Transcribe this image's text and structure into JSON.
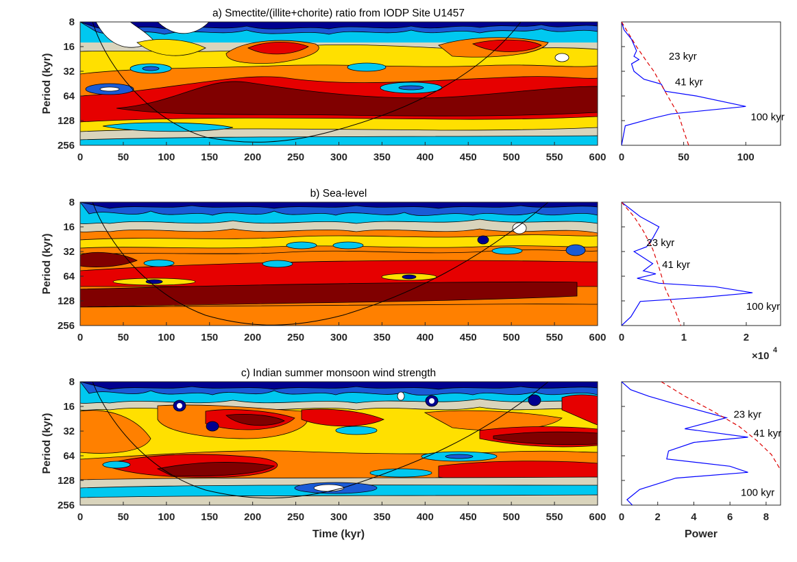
{
  "figure": {
    "xlabel": "Time (kyr)",
    "power_label": "Power",
    "exponent_label": "×10",
    "exponent_power": "4"
  },
  "chart_data": [
    {
      "type": "heatmap",
      "title": "a) Smectite/(illite+chorite) ratio from IODP Site U1457",
      "ylabel": "Period (kyr)",
      "x_ticks": [
        0,
        50,
        100,
        150,
        200,
        250,
        300,
        350,
        400,
        450,
        500,
        550,
        600
      ],
      "y_ticks": [
        8,
        16,
        32,
        64,
        128,
        256
      ],
      "xlim": [
        0,
        600
      ],
      "ylim": [
        8,
        256
      ],
      "y_scale": "log2 (reversed)",
      "colormap": [
        "#00008f",
        "#1a5bd6",
        "#00c8f0",
        "#d9d4bc",
        "#ffe000",
        "#ff8000",
        "#e60000",
        "#800000"
      ],
      "cone_of_influence": true
    },
    {
      "type": "line",
      "title": "",
      "series": [
        {
          "name": "spectrum",
          "color": "#0000ff",
          "style": "solid",
          "points": [
            [
              0,
              8
            ],
            [
              2,
              10
            ],
            [
              8,
              13
            ],
            [
              12,
              18
            ],
            [
              10,
              21
            ],
            [
              14,
              23
            ],
            [
              8,
              26
            ],
            [
              10,
              32
            ],
            [
              18,
              40
            ],
            [
              32,
              46
            ],
            [
              35,
              56
            ],
            [
              60,
              64
            ],
            [
              100,
              86
            ],
            [
              40,
              106
            ],
            [
              25,
              120
            ],
            [
              3,
              148
            ],
            [
              0,
              256
            ]
          ]
        },
        {
          "name": "red-noise",
          "color": "#dd0000",
          "style": "dashed",
          "points": [
            [
              0,
              8
            ],
            [
              12,
              16
            ],
            [
              20,
              24
            ],
            [
              26,
              32
            ],
            [
              36,
              60
            ],
            [
              46,
              110
            ],
            [
              50,
              170
            ],
            [
              54,
              256
            ]
          ]
        }
      ],
      "x_ticks": [
        0,
        50,
        100
      ],
      "xlim": [
        0,
        128
      ],
      "ylim": [
        8,
        256
      ],
      "annotations": [
        {
          "text": "23 kyr",
          "x": 38,
          "y": 21
        },
        {
          "text": "41 kyr",
          "x": 43,
          "y": 43
        },
        {
          "text": "100 kyr",
          "x": 104,
          "y": 115
        }
      ]
    },
    {
      "type": "heatmap",
      "title": "b) Sea-level",
      "ylabel": "Period (kyr)",
      "x_ticks": [
        0,
        50,
        100,
        150,
        200,
        250,
        300,
        350,
        400,
        450,
        500,
        550,
        600
      ],
      "y_ticks": [
        8,
        16,
        32,
        64,
        128,
        256
      ],
      "xlim": [
        0,
        600
      ],
      "ylim": [
        8,
        256
      ],
      "y_scale": "log2 (reversed)",
      "colormap": [
        "#00008f",
        "#1a5bd6",
        "#00c8f0",
        "#d9d4bc",
        "#ffe000",
        "#ff8000",
        "#e60000",
        "#800000"
      ],
      "cone_of_influence": true
    },
    {
      "type": "line",
      "title": "",
      "series": [
        {
          "name": "spectrum",
          "color": "#0000ff",
          "style": "solid",
          "points": [
            [
              0,
              8
            ],
            [
              0.3,
              12
            ],
            [
              0.6,
              16
            ],
            [
              0.5,
              22
            ],
            [
              0.4,
              28
            ],
            [
              0.2,
              32
            ],
            [
              0.5,
              45
            ],
            [
              0.35,
              55
            ],
            [
              0.55,
              60
            ],
            [
              0.25,
              68
            ],
            [
              0.6,
              78
            ],
            [
              1.5,
              86
            ],
            [
              2.1,
              102
            ],
            [
              1.3,
              116
            ],
            [
              0.3,
              130
            ],
            [
              0.15,
              200
            ],
            [
              0,
              256
            ]
          ]
        },
        {
          "name": "red-noise",
          "color": "#dd0000",
          "style": "dashed",
          "points": [
            [
              0,
              8
            ],
            [
              0.2,
              12
            ],
            [
              0.35,
              18
            ],
            [
              0.5,
              30
            ],
            [
              0.6,
              50
            ],
            [
              0.7,
              90
            ],
            [
              0.85,
              160
            ],
            [
              0.95,
              256
            ]
          ]
        }
      ],
      "x_ticks": [
        0,
        1,
        2
      ],
      "xlim": [
        0,
        2.55
      ],
      "ylim": [
        8,
        256
      ],
      "annotations": [
        {
          "text": "23 kyr",
          "x": 0.4,
          "y": 25
        },
        {
          "text": "41 kyr",
          "x": 0.65,
          "y": 46
        },
        {
          "text": "100 kyr",
          "x": 2.0,
          "y": 150
        }
      ]
    },
    {
      "type": "heatmap",
      "title": "c) Indian summer monsoon wind strength",
      "ylabel": "Period (kyr)",
      "x_ticks": [
        0,
        50,
        100,
        150,
        200,
        250,
        300,
        350,
        400,
        450,
        500,
        550,
        600
      ],
      "y_ticks": [
        8,
        16,
        32,
        64,
        128,
        256
      ],
      "xlim": [
        0,
        600
      ],
      "ylim": [
        8,
        256
      ],
      "y_scale": "log2 (reversed)",
      "colormap": [
        "#00008f",
        "#1a5bd6",
        "#00c8f0",
        "#d9d4bc",
        "#ffe000",
        "#ff8000",
        "#e60000",
        "#800000"
      ],
      "cone_of_influence": true
    },
    {
      "type": "line",
      "title": "",
      "series": [
        {
          "name": "spectrum",
          "color": "#0000ff",
          "style": "solid",
          "points": [
            [
              0,
              8
            ],
            [
              0.5,
              10
            ],
            [
              1.5,
              12
            ],
            [
              3,
              15
            ],
            [
              5.8,
              22
            ],
            [
              4,
              28
            ],
            [
              3.5,
              30
            ],
            [
              7,
              38
            ],
            [
              4,
              44
            ],
            [
              2.6,
              56
            ],
            [
              2.5,
              70
            ],
            [
              6,
              86
            ],
            [
              7,
              102
            ],
            [
              3,
              120
            ],
            [
              1,
              165
            ],
            [
              0.3,
              220
            ],
            [
              0.6,
              256
            ]
          ]
        },
        {
          "name": "red-noise",
          "color": "#dd0000",
          "style": "dashed",
          "points": [
            [
              2.2,
              8
            ],
            [
              3.5,
              12
            ],
            [
              5,
              18
            ],
            [
              6.5,
              28
            ],
            [
              7.5,
              42
            ],
            [
              8.3,
              62
            ],
            [
              8.8,
              95
            ]
          ]
        }
      ],
      "x_ticks": [
        0,
        2,
        4,
        6,
        8
      ],
      "xlim": [
        0,
        8.8
      ],
      "ylim": [
        8,
        256
      ],
      "annotations": [
        {
          "text": "23 kyr",
          "x": 6.2,
          "y": 20
        },
        {
          "text": "41 kyr",
          "x": 7.3,
          "y": 34
        },
        {
          "text": "100 kyr",
          "x": 6.6,
          "y": 180
        }
      ]
    }
  ]
}
